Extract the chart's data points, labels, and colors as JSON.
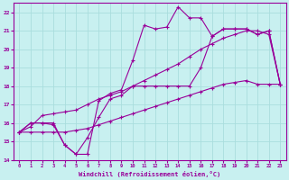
{
  "xlabel": "Windchill (Refroidissement éolien,°C)",
  "background_color": "#c8f0f0",
  "line_color": "#990099",
  "grid_color": "#aadddd",
  "xlim": [
    -0.5,
    23.5
  ],
  "ylim": [
    14,
    22.5
  ],
  "xticks": [
    0,
    1,
    2,
    3,
    4,
    5,
    6,
    7,
    8,
    9,
    10,
    11,
    12,
    13,
    14,
    15,
    16,
    17,
    18,
    19,
    20,
    21,
    22,
    23
  ],
  "yticks": [
    14,
    15,
    16,
    17,
    18,
    19,
    20,
    21,
    22
  ],
  "hours": [
    0,
    1,
    2,
    3,
    4,
    5,
    6,
    7,
    8,
    9,
    10,
    11,
    12,
    13,
    14,
    15,
    16,
    17,
    18,
    19,
    20,
    21,
    22,
    23
  ],
  "line_jagged": [
    15.5,
    16.0,
    16.0,
    15.9,
    14.8,
    14.3,
    14.3,
    17.2,
    17.6,
    17.8,
    19.4,
    21.3,
    21.1,
    21.2,
    22.3,
    21.7,
    21.7,
    20.7,
    21.1,
    21.1,
    21.1,
    20.8,
    21.0,
    18.1
  ],
  "line_smooth": [
    15.5,
    15.8,
    16.4,
    16.5,
    16.6,
    16.7,
    17.0,
    17.3,
    17.5,
    17.7,
    18.0,
    18.3,
    18.6,
    18.9,
    19.2,
    19.6,
    20.0,
    20.3,
    20.6,
    20.8,
    21.0,
    21.0,
    20.8,
    18.1
  ],
  "line_dip": [
    15.5,
    16.0,
    16.0,
    16.0,
    14.8,
    14.3,
    15.2,
    16.3,
    17.3,
    17.5,
    18.0,
    18.0,
    18.0,
    18.0,
    18.0,
    18.0,
    19.0,
    20.7,
    21.1,
    21.1,
    21.1,
    20.8,
    21.0,
    18.1
  ],
  "line_flat": [
    15.5,
    15.5,
    15.5,
    15.5,
    15.5,
    15.6,
    15.7,
    15.9,
    16.1,
    16.3,
    16.5,
    16.7,
    16.9,
    17.1,
    17.3,
    17.5,
    17.7,
    17.9,
    18.1,
    18.2,
    18.3,
    18.1,
    18.1,
    18.1
  ]
}
